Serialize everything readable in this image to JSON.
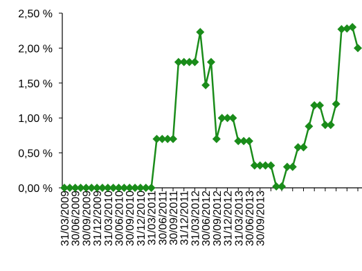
{
  "chart_data": {
    "type": "line",
    "title": "",
    "xlabel": "",
    "ylabel": "",
    "ylim": [
      0,
      2.5
    ],
    "grid": false,
    "legend": "none",
    "y_ticks": [
      {
        "value": 0.0,
        "label": "0,00 %"
      },
      {
        "value": 0.5,
        "label": "0,50 %"
      },
      {
        "value": 1.0,
        "label": "1,00 %"
      },
      {
        "value": 1.5,
        "label": "1,50 %"
      },
      {
        "value": 2.0,
        "label": "2,00 %"
      },
      {
        "value": 2.5,
        "label": "2,50 %"
      }
    ],
    "x_tick_labels": [
      "31/03/2009",
      "30/06/2009",
      "30/09/2009",
      "31/12/2009",
      "31/03/2010",
      "30/06/2010",
      "30/09/2010",
      "31/12/2010",
      "31/03/2011",
      "30/06/2011",
      "30/09/2011",
      "31/12/2011",
      "31/03/2012",
      "30/06/2012",
      "30/09/2012",
      "31/12/2012",
      "31/03/2013",
      "30/06/2013",
      "30/09/2013"
    ],
    "points_per_tick": 2,
    "series": [
      {
        "color": "#1a8c1a",
        "marker": "diamond",
        "values": [
          0,
          0,
          0,
          0,
          0,
          0,
          0,
          0,
          0,
          0,
          0,
          0,
          0,
          0,
          0,
          0,
          0,
          0.7,
          0.7,
          0.7,
          0.7,
          1.8,
          1.8,
          1.8,
          1.8,
          2.23,
          1.47,
          1.8,
          0.7,
          1.0,
          1.0,
          1.0,
          0.67,
          0.67,
          0.67,
          0.32,
          0.32,
          0.32,
          0.32,
          0.02,
          0.02,
          0.3,
          0.3,
          0.58,
          0.58,
          0.88,
          1.18,
          1.18,
          0.9,
          0.9,
          1.2,
          2.27,
          2.28,
          2.3,
          2.0
        ]
      }
    ]
  }
}
